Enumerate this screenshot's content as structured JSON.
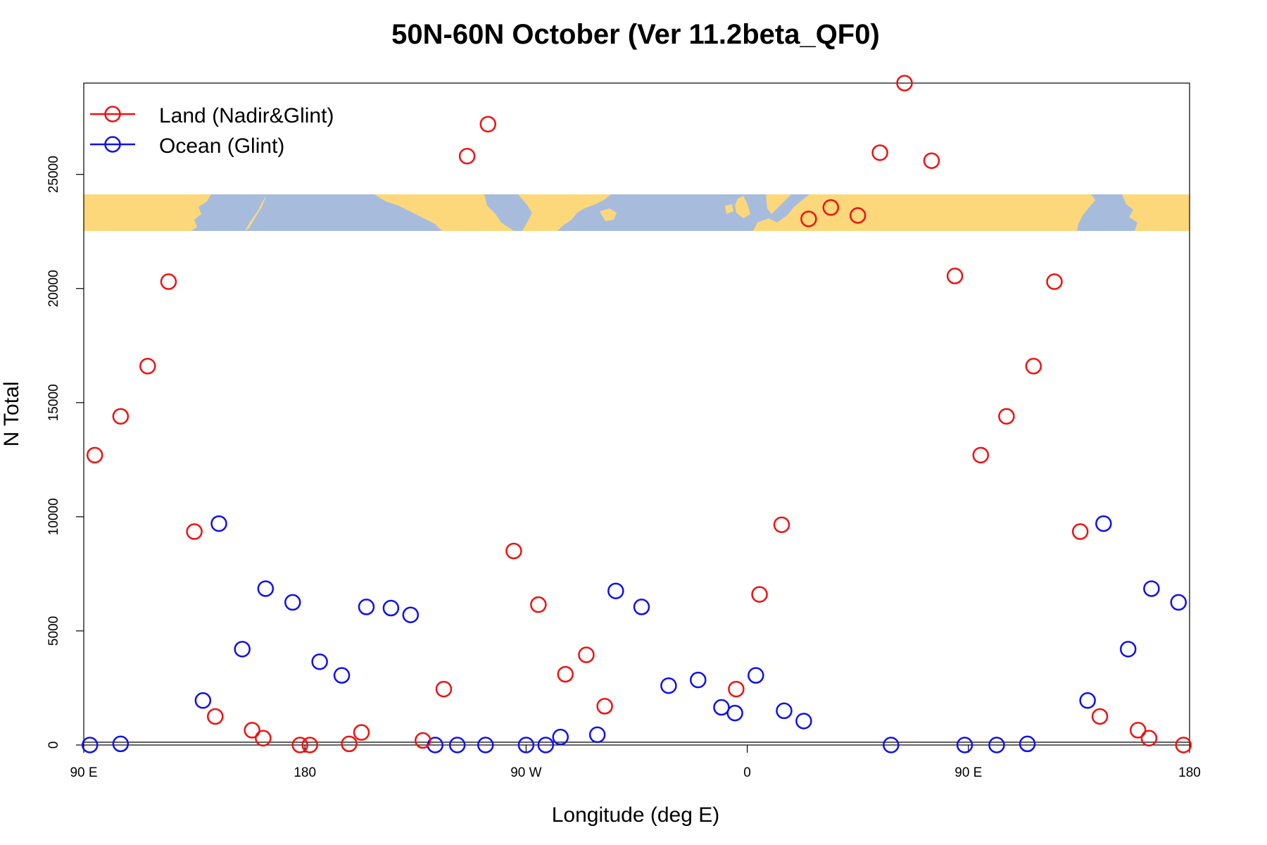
{
  "chart_data": {
    "type": "scatter",
    "title": "50N-60N October (Ver 11.2beta_QF0)",
    "xlabel": "Longitude (deg E)",
    "ylabel": "N Total",
    "xlim": [
      90,
      540
    ],
    "ylim": [
      0,
      29000
    ],
    "x_ticks": [
      {
        "value": 90,
        "label": "90 E"
      },
      {
        "value": 180,
        "label": "180"
      },
      {
        "value": 270,
        "label": "90 W"
      },
      {
        "value": 360,
        "label": "0"
      },
      {
        "value": 450,
        "label": "90 E"
      },
      {
        "value": 540,
        "label": "180"
      }
    ],
    "y_ticks": [
      {
        "value": 0,
        "label": "0"
      },
      {
        "value": 5000,
        "label": "5000"
      },
      {
        "value": 10000,
        "label": "10000"
      },
      {
        "value": 15000,
        "label": "15000"
      },
      {
        "value": 20000,
        "label": "20000"
      },
      {
        "value": 25000,
        "label": "25000"
      }
    ],
    "legend": {
      "position": "top-left"
    },
    "map_strip": {
      "description": "world map strip",
      "ocean_color": "#a7bcdd",
      "land_color": "#fcd87a"
    },
    "series": [
      {
        "name": "Land (Nadir&Glint)",
        "color": "#ee1111",
        "points": [
          [
            94.5,
            12700
          ],
          [
            105,
            14400
          ],
          [
            116,
            16600
          ],
          [
            124.5,
            20300
          ],
          [
            135,
            9350
          ],
          [
            143.5,
            1250
          ],
          [
            158.5,
            650
          ],
          [
            163,
            300
          ],
          [
            178,
            0
          ],
          [
            182,
            0
          ],
          [
            198,
            50
          ],
          [
            203,
            550
          ],
          [
            228,
            200
          ],
          [
            236.5,
            2450
          ],
          [
            246,
            25800
          ],
          [
            254.5,
            27200
          ],
          [
            265,
            8500
          ],
          [
            275,
            6150
          ],
          [
            286,
            3100
          ],
          [
            294.5,
            3950
          ],
          [
            302,
            1700
          ],
          [
            355.5,
            2450
          ],
          [
            365,
            6600
          ],
          [
            374,
            9650
          ],
          [
            385,
            23050
          ],
          [
            394,
            23550
          ],
          [
            405,
            23200
          ],
          [
            414,
            25950
          ],
          [
            424,
            29000
          ],
          [
            435,
            25600
          ],
          [
            444.5,
            20550
          ],
          [
            455,
            12700
          ],
          [
            465.5,
            14400
          ],
          [
            476.5,
            16600
          ],
          [
            485,
            20300
          ],
          [
            495.5,
            9350
          ],
          [
            503.5,
            1250
          ],
          [
            519,
            650
          ],
          [
            523.5,
            300
          ],
          [
            537.5,
            0
          ]
        ]
      },
      {
        "name": "Ocean (Glint)",
        "color": "#1010ee",
        "points": [
          [
            92.5,
            0
          ],
          [
            105,
            50
          ],
          [
            138.5,
            1950
          ],
          [
            145,
            9700
          ],
          [
            154.5,
            4200
          ],
          [
            164,
            6850
          ],
          [
            175,
            6250
          ],
          [
            186,
            3650
          ],
          [
            195,
            3050
          ],
          [
            205,
            6050
          ],
          [
            215,
            6000
          ],
          [
            223,
            5700
          ],
          [
            233,
            0
          ],
          [
            242,
            0
          ],
          [
            253.5,
            0
          ],
          [
            270,
            0
          ],
          [
            278,
            0
          ],
          [
            284,
            350
          ],
          [
            299,
            450
          ],
          [
            306.5,
            6750
          ],
          [
            317,
            6050
          ],
          [
            328,
            2600
          ],
          [
            340,
            2850
          ],
          [
            349.5,
            1650
          ],
          [
            355,
            1400
          ],
          [
            363.5,
            3050
          ],
          [
            375,
            1500
          ],
          [
            383,
            1050
          ],
          [
            418.5,
            0
          ],
          [
            448.5,
            0
          ],
          [
            461.5,
            0
          ],
          [
            474,
            50
          ],
          [
            498.5,
            1950
          ],
          [
            505,
            9700
          ],
          [
            515,
            4200
          ],
          [
            524.5,
            6850
          ],
          [
            535.5,
            6250
          ]
        ]
      }
    ]
  }
}
